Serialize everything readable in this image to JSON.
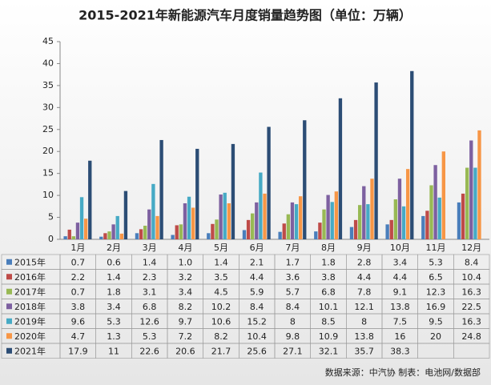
{
  "chart_data": {
    "type": "bar",
    "title": "2015-2021年新能源汽车月度销量趋势图（单位：万辆）",
    "categories": [
      "1月",
      "2月",
      "3月",
      "4月",
      "5月",
      "6月",
      "7月",
      "8月",
      "9月",
      "10月",
      "11月",
      "12月"
    ],
    "series": [
      {
        "name": "2015年",
        "color": "#4a7ebb",
        "values": [
          0.7,
          0.6,
          1.4,
          1.0,
          1.4,
          2.1,
          1.7,
          1.8,
          2.8,
          3.4,
          5.3,
          8.4
        ],
        "value_labels": [
          "0.7",
          "0.6",
          "1.4",
          "1.0",
          "1.4",
          "2.1",
          "1.7",
          "1.8",
          "2.8",
          "3.4",
          "5.3",
          "8.4"
        ]
      },
      {
        "name": "2016年",
        "color": "#be4b48",
        "values": [
          2.2,
          1.4,
          2.3,
          3.2,
          3.5,
          4.4,
          3.6,
          3.8,
          4.4,
          4.4,
          6.5,
          10.4
        ]
      },
      {
        "name": "2017年",
        "color": "#98b954",
        "values": [
          0.7,
          1.8,
          3.1,
          3.4,
          4.5,
          5.9,
          5.7,
          6.8,
          7.8,
          9.1,
          12.3,
          16.3
        ]
      },
      {
        "name": "2018年",
        "color": "#7d60a0",
        "values": [
          3.8,
          3.4,
          6.8,
          8.2,
          10.2,
          8.4,
          8.4,
          10.1,
          12.1,
          13.8,
          16.9,
          22.5
        ]
      },
      {
        "name": "2019年",
        "color": "#46aac5",
        "values": [
          9.6,
          5.3,
          12.6,
          9.7,
          10.6,
          15.2,
          8,
          8.5,
          8,
          7.5,
          9.5,
          16.3
        ]
      },
      {
        "name": "2020年",
        "color": "#f79646",
        "values": [
          4.7,
          1.3,
          5.3,
          7.2,
          8.2,
          10.4,
          9.8,
          10.9,
          13.8,
          16,
          20,
          24.8
        ]
      },
      {
        "name": "2021年",
        "color": "#2c4d75",
        "values": [
          17.9,
          11,
          22.6,
          20.6,
          21.7,
          25.6,
          27.1,
          32.1,
          35.7,
          38.3,
          null,
          null
        ]
      }
    ],
    "ylim": [
      0,
      45
    ],
    "yticks": [
      0,
      5,
      10,
      15,
      20,
      25,
      30,
      35,
      40,
      45
    ],
    "source": "数据来源：中汽协   制表：电池网/数据部"
  }
}
